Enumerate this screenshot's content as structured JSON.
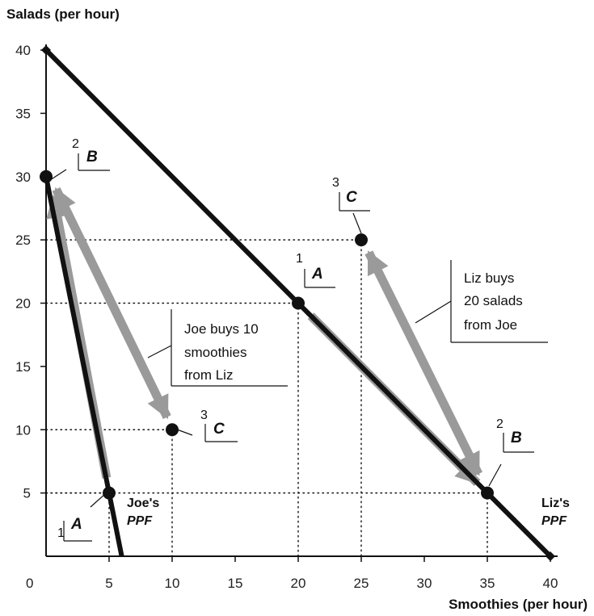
{
  "chart_data": {
    "type": "line",
    "xlabel": "Smoothies (per hour)",
    "ylabel": "Salads (per hour)",
    "xlim": [
      0,
      40
    ],
    "ylim": [
      0,
      40
    ],
    "origin_label": "0",
    "x_ticks": [
      "5",
      "10",
      "15",
      "20",
      "25",
      "30",
      "35",
      "40"
    ],
    "y_ticks": [
      "5",
      "10",
      "15",
      "20",
      "25",
      "30",
      "35",
      "40"
    ],
    "x_tick_values": [
      5,
      10,
      15,
      20,
      25,
      30,
      35,
      40
    ],
    "y_tick_values": [
      5,
      10,
      15,
      20,
      25,
      30,
      35,
      40
    ],
    "series": [
      {
        "name": "Joe's PPF",
        "label_line1": "Joe's",
        "label_line2": "PPF",
        "points": [
          [
            0,
            30
          ],
          [
            6,
            0
          ]
        ]
      },
      {
        "name": "Liz's PPF",
        "label_line1": "Liz's",
        "label_line2": "PPF",
        "points": [
          [
            0,
            40
          ],
          [
            40,
            0
          ]
        ]
      }
    ],
    "points": [
      {
        "id": "joe-a",
        "owner": "Joe",
        "letter": "A",
        "number": "1",
        "x": 5,
        "y": 5
      },
      {
        "id": "joe-b",
        "owner": "Joe",
        "letter": "B",
        "number": "2",
        "x": 0,
        "y": 30
      },
      {
        "id": "joe-c",
        "owner": "Joe",
        "letter": "C",
        "number": "3",
        "x": 10,
        "y": 10
      },
      {
        "id": "liz-a",
        "owner": "Liz",
        "letter": "A",
        "number": "1",
        "x": 20,
        "y": 20
      },
      {
        "id": "liz-b",
        "owner": "Liz",
        "letter": "B",
        "number": "2",
        "x": 35,
        "y": 5
      },
      {
        "id": "liz-c",
        "owner": "Liz",
        "letter": "C",
        "number": "3",
        "x": 25,
        "y": 25
      }
    ],
    "annotations": [
      {
        "id": "joe-trade",
        "lines": [
          "Joe buys 10",
          "smoothies",
          "from Liz"
        ]
      },
      {
        "id": "liz-trade",
        "lines": [
          "Liz buys",
          "20 salads",
          "from Joe"
        ]
      }
    ]
  }
}
